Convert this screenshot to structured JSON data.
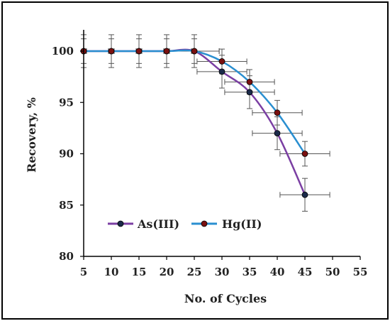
{
  "chart_data": {
    "type": "line",
    "title": "",
    "xlabel": "No. of Cycles",
    "ylabel": "Recovery, %",
    "xlim": [
      5,
      55
    ],
    "ylim": [
      80,
      100
    ],
    "x_ticks": [
      5,
      10,
      15,
      20,
      25,
      30,
      35,
      40,
      45,
      50,
      55
    ],
    "y_ticks": [
      80,
      85,
      90,
      95,
      100
    ],
    "grid": false,
    "legend_position": "bottom-left",
    "x": [
      5,
      10,
      15,
      20,
      25,
      30,
      35,
      40,
      45
    ],
    "series": [
      {
        "name": "As(III)",
        "line_color": "#7b3fa3",
        "marker_color": "#1b2a4a",
        "values": [
          100,
          100,
          100,
          100,
          100,
          98,
          96,
          92,
          86
        ],
        "y_err": [
          1.6,
          1.6,
          1.6,
          1.6,
          1.6,
          1.6,
          1.6,
          1.6,
          1.6
        ],
        "x_err": [
          4.5,
          4.5,
          4.5,
          4.5,
          4.5,
          4.5,
          4.5,
          4.5,
          4.5
        ]
      },
      {
        "name": "Hg(II)",
        "line_color": "#2a8fd0",
        "marker_color": "#7a1010",
        "values": [
          100,
          100,
          100,
          100,
          100,
          99,
          97,
          94,
          90
        ],
        "y_err": [
          1.2,
          1.2,
          1.2,
          1.2,
          1.2,
          1.2,
          1.2,
          1.2,
          1.2
        ],
        "x_err": [
          4.5,
          4.5,
          4.5,
          4.5,
          4.5,
          4.5,
          4.5,
          4.5,
          4.5
        ]
      }
    ]
  }
}
